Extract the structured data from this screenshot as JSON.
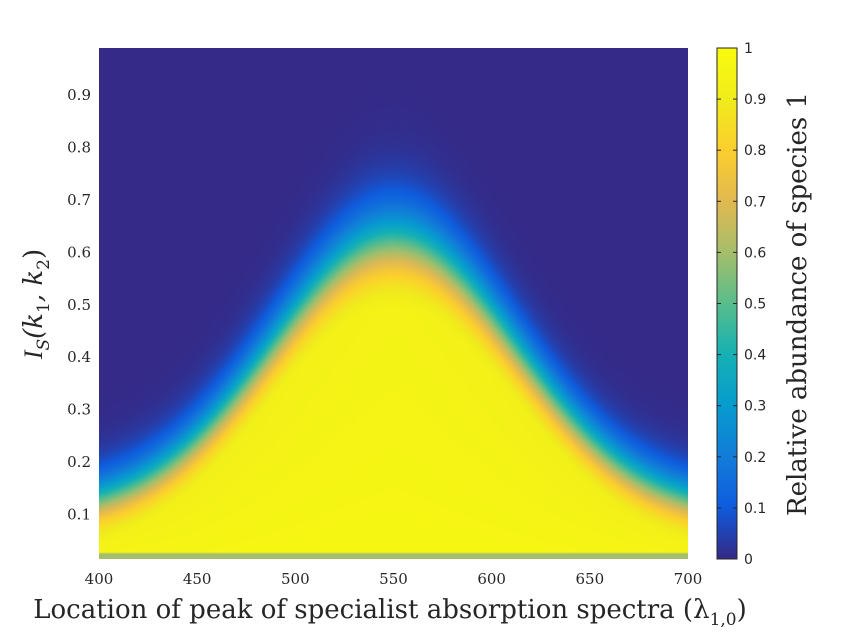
{
  "chart_data": {
    "type": "heatmap",
    "title": "",
    "xlabel": "Location of peak of specialist absorption spectra (λ",
    "xlabel_subscript": "1,0",
    "xlabel_close": ")",
    "ylabel_prefix": "I",
    "ylabel_subscript": "S",
    "ylabel_args": "(k",
    "ylabel_k1_sub": "1",
    "ylabel_sep": ", k",
    "ylabel_k2_sub": "2",
    "ylabel_close": ")",
    "xlim": [
      400,
      700
    ],
    "ylim": [
      0.015,
      0.99
    ],
    "x_ticks": [
      "400",
      "450",
      "500",
      "550",
      "600",
      "650",
      "700"
    ],
    "y_ticks": [
      "0.1",
      "0.2",
      "0.3",
      "0.4",
      "0.5",
      "0.6",
      "0.7",
      "0.8",
      "0.9"
    ],
    "colorbar": {
      "label": "Relative abundance of species 1",
      "range": [
        0,
        1
      ],
      "ticks": [
        "0",
        "0.1",
        "0.2",
        "0.3",
        "0.4",
        "0.5",
        "0.6",
        "0.7",
        "0.8",
        "0.9",
        "1"
      ],
      "colormap": "parula"
    },
    "grid": false,
    "z_description_points": [
      {
        "x": 550,
        "y_top_of_high_region": 0.62
      },
      {
        "x": 450,
        "y_top_of_high_region": 0.15
      },
      {
        "x": 650,
        "y_top_of_high_region": 0.15
      },
      {
        "x": 400,
        "y_top_of_high_region": 0.1
      },
      {
        "x": 700,
        "y_top_of_high_region": 0.1
      }
    ]
  }
}
